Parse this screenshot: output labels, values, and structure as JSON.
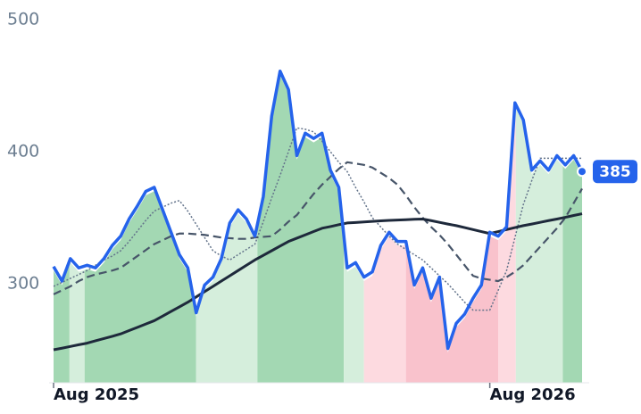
{
  "chart_data": {
    "type": "line",
    "x": [
      0,
      1,
      2,
      3,
      4,
      5,
      6,
      7,
      8,
      9,
      10,
      11,
      12,
      13,
      14,
      15,
      16,
      17,
      18,
      19,
      20,
      21,
      22,
      23,
      24,
      25,
      26,
      27,
      28,
      29,
      30,
      31,
      32,
      33,
      34,
      35,
      36,
      37,
      38,
      39,
      40,
      41,
      42,
      43,
      44,
      45,
      46,
      47,
      48,
      49,
      50,
      51,
      52,
      53,
      54,
      55,
      56,
      57,
      58,
      59,
      60,
      61,
      62,
      63
    ],
    "xlim": [
      0,
      63
    ],
    "xticks": [
      {
        "value": 0,
        "label": "Aug 2025"
      },
      {
        "value": 52,
        "label": "Aug 2026"
      }
    ],
    "ylim": [
      225,
      500
    ],
    "yticks": [
      300,
      400,
      500
    ],
    "bands": [
      {
        "start": 0,
        "end": 1.9,
        "color": "#a3d8b3"
      },
      {
        "start": 1.9,
        "end": 3.7,
        "color": "#d5eedc"
      },
      {
        "start": 3.7,
        "end": 17,
        "color": "#a3d8b3"
      },
      {
        "start": 17,
        "end": 24.3,
        "color": "#d5eedc"
      },
      {
        "start": 24.3,
        "end": 34.6,
        "color": "#a3d8b3"
      },
      {
        "start": 34.6,
        "end": 37,
        "color": "#d5eedc"
      },
      {
        "start": 37,
        "end": 42,
        "color": "#fddae0"
      },
      {
        "start": 42,
        "end": 53,
        "color": "#f9c2cc"
      },
      {
        "start": 53,
        "end": 55.1,
        "color": "#fddae0"
      },
      {
        "start": 55.1,
        "end": 60.7,
        "color": "#d5eedc"
      },
      {
        "start": 60.7,
        "end": 63,
        "color": "#a3d8b3"
      }
    ],
    "series": [
      {
        "color": "#64748b",
        "width": 1.5,
        "dash": "2 2",
        "values": [
          298,
          301,
          304,
          307,
          310,
          314,
          318,
          321,
          325,
          332,
          340,
          348,
          355,
          358,
          361,
          363,
          355,
          345,
          335,
          325,
          321,
          318,
          322,
          326,
          330,
          347,
          365,
          382,
          400,
          418,
          417,
          415,
          408,
          400,
          392,
          385,
          373,
          362,
          350,
          343,
          336,
          330,
          326,
          322,
          318,
          312,
          306,
          300,
          293,
          286,
          280,
          280,
          280,
          295,
          310,
          335,
          360,
          378,
          395,
          395,
          395,
          395,
          395,
          395
        ]
      },
      {
        "color": "#475569",
        "width": 2.2,
        "dash": "9 5",
        "values": [
          292,
          295,
          298,
          302,
          305,
          307,
          308.5,
          310,
          312,
          316.5,
          321,
          325.5,
          330,
          333,
          336,
          338,
          338,
          337.5,
          337,
          336,
          335,
          334.5,
          334,
          334,
          335,
          335.5,
          336,
          341,
          347,
          352,
          360,
          368,
          375,
          381,
          387,
          392,
          391,
          390,
          388,
          384,
          380,
          375,
          367,
          358,
          350,
          343,
          337,
          330,
          322,
          314,
          306,
          304,
          303,
          302,
          305,
          309,
          314,
          321,
          328,
          335,
          342,
          350,
          361,
          372
        ]
      },
      {
        "color": "#1e293b",
        "width": 3,
        "dash": "none",
        "values": [
          250,
          251.2,
          252.5,
          253.8,
          255,
          256.8,
          258.5,
          260.2,
          262,
          264.5,
          267,
          269.5,
          272,
          275.5,
          279,
          282.5,
          286,
          290,
          294,
          298,
          302,
          306,
          310,
          314,
          318,
          321.5,
          325,
          328.5,
          332,
          334.5,
          337,
          339.5,
          342,
          343.3,
          344.7,
          346,
          346.4,
          346.8,
          347.2,
          347.6,
          348,
          348.2,
          348.5,
          348.8,
          349,
          347.8,
          346.5,
          345.2,
          344,
          342.5,
          341,
          339.5,
          338,
          339.5,
          341,
          342.5,
          344,
          345.2,
          346.5,
          347.8,
          349,
          350.3,
          351.7,
          353
        ]
      },
      {
        "color": "#2563eb",
        "width": 3.5,
        "dash": "none",
        "values": [
          313,
          302,
          319,
          312,
          314,
          312,
          319,
          329,
          336,
          349,
          359,
          370,
          373,
          356,
          339,
          322,
          312,
          278,
          299,
          305,
          319,
          346,
          356,
          349,
          336,
          366,
          427,
          461,
          447,
          397,
          414,
          410,
          414,
          386,
          373,
          312,
          316,
          305,
          309,
          329,
          339,
          332,
          332,
          299,
          312,
          289,
          305,
          251,
          270,
          277,
          289,
          299,
          339,
          336,
          343,
          437,
          424,
          386,
          393,
          386,
          397,
          390,
          397,
          385
        ]
      }
    ]
  }
}
